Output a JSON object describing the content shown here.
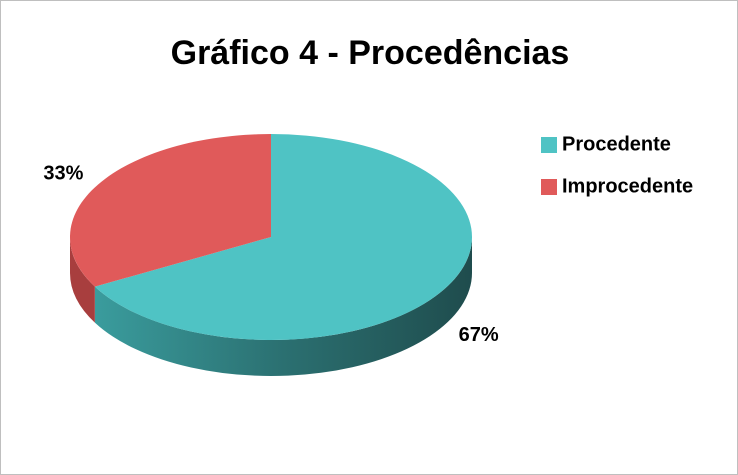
{
  "chart_data": {
    "type": "pie3d",
    "title": "Gráfico 4 - Procedências",
    "categories": [
      "Procedente",
      "Improcedente"
    ],
    "values": [
      67,
      33
    ],
    "value_labels": [
      "67%",
      "33%"
    ],
    "colors": [
      "#4fc3c4",
      "#e05a5a"
    ],
    "legend": "right"
  }
}
